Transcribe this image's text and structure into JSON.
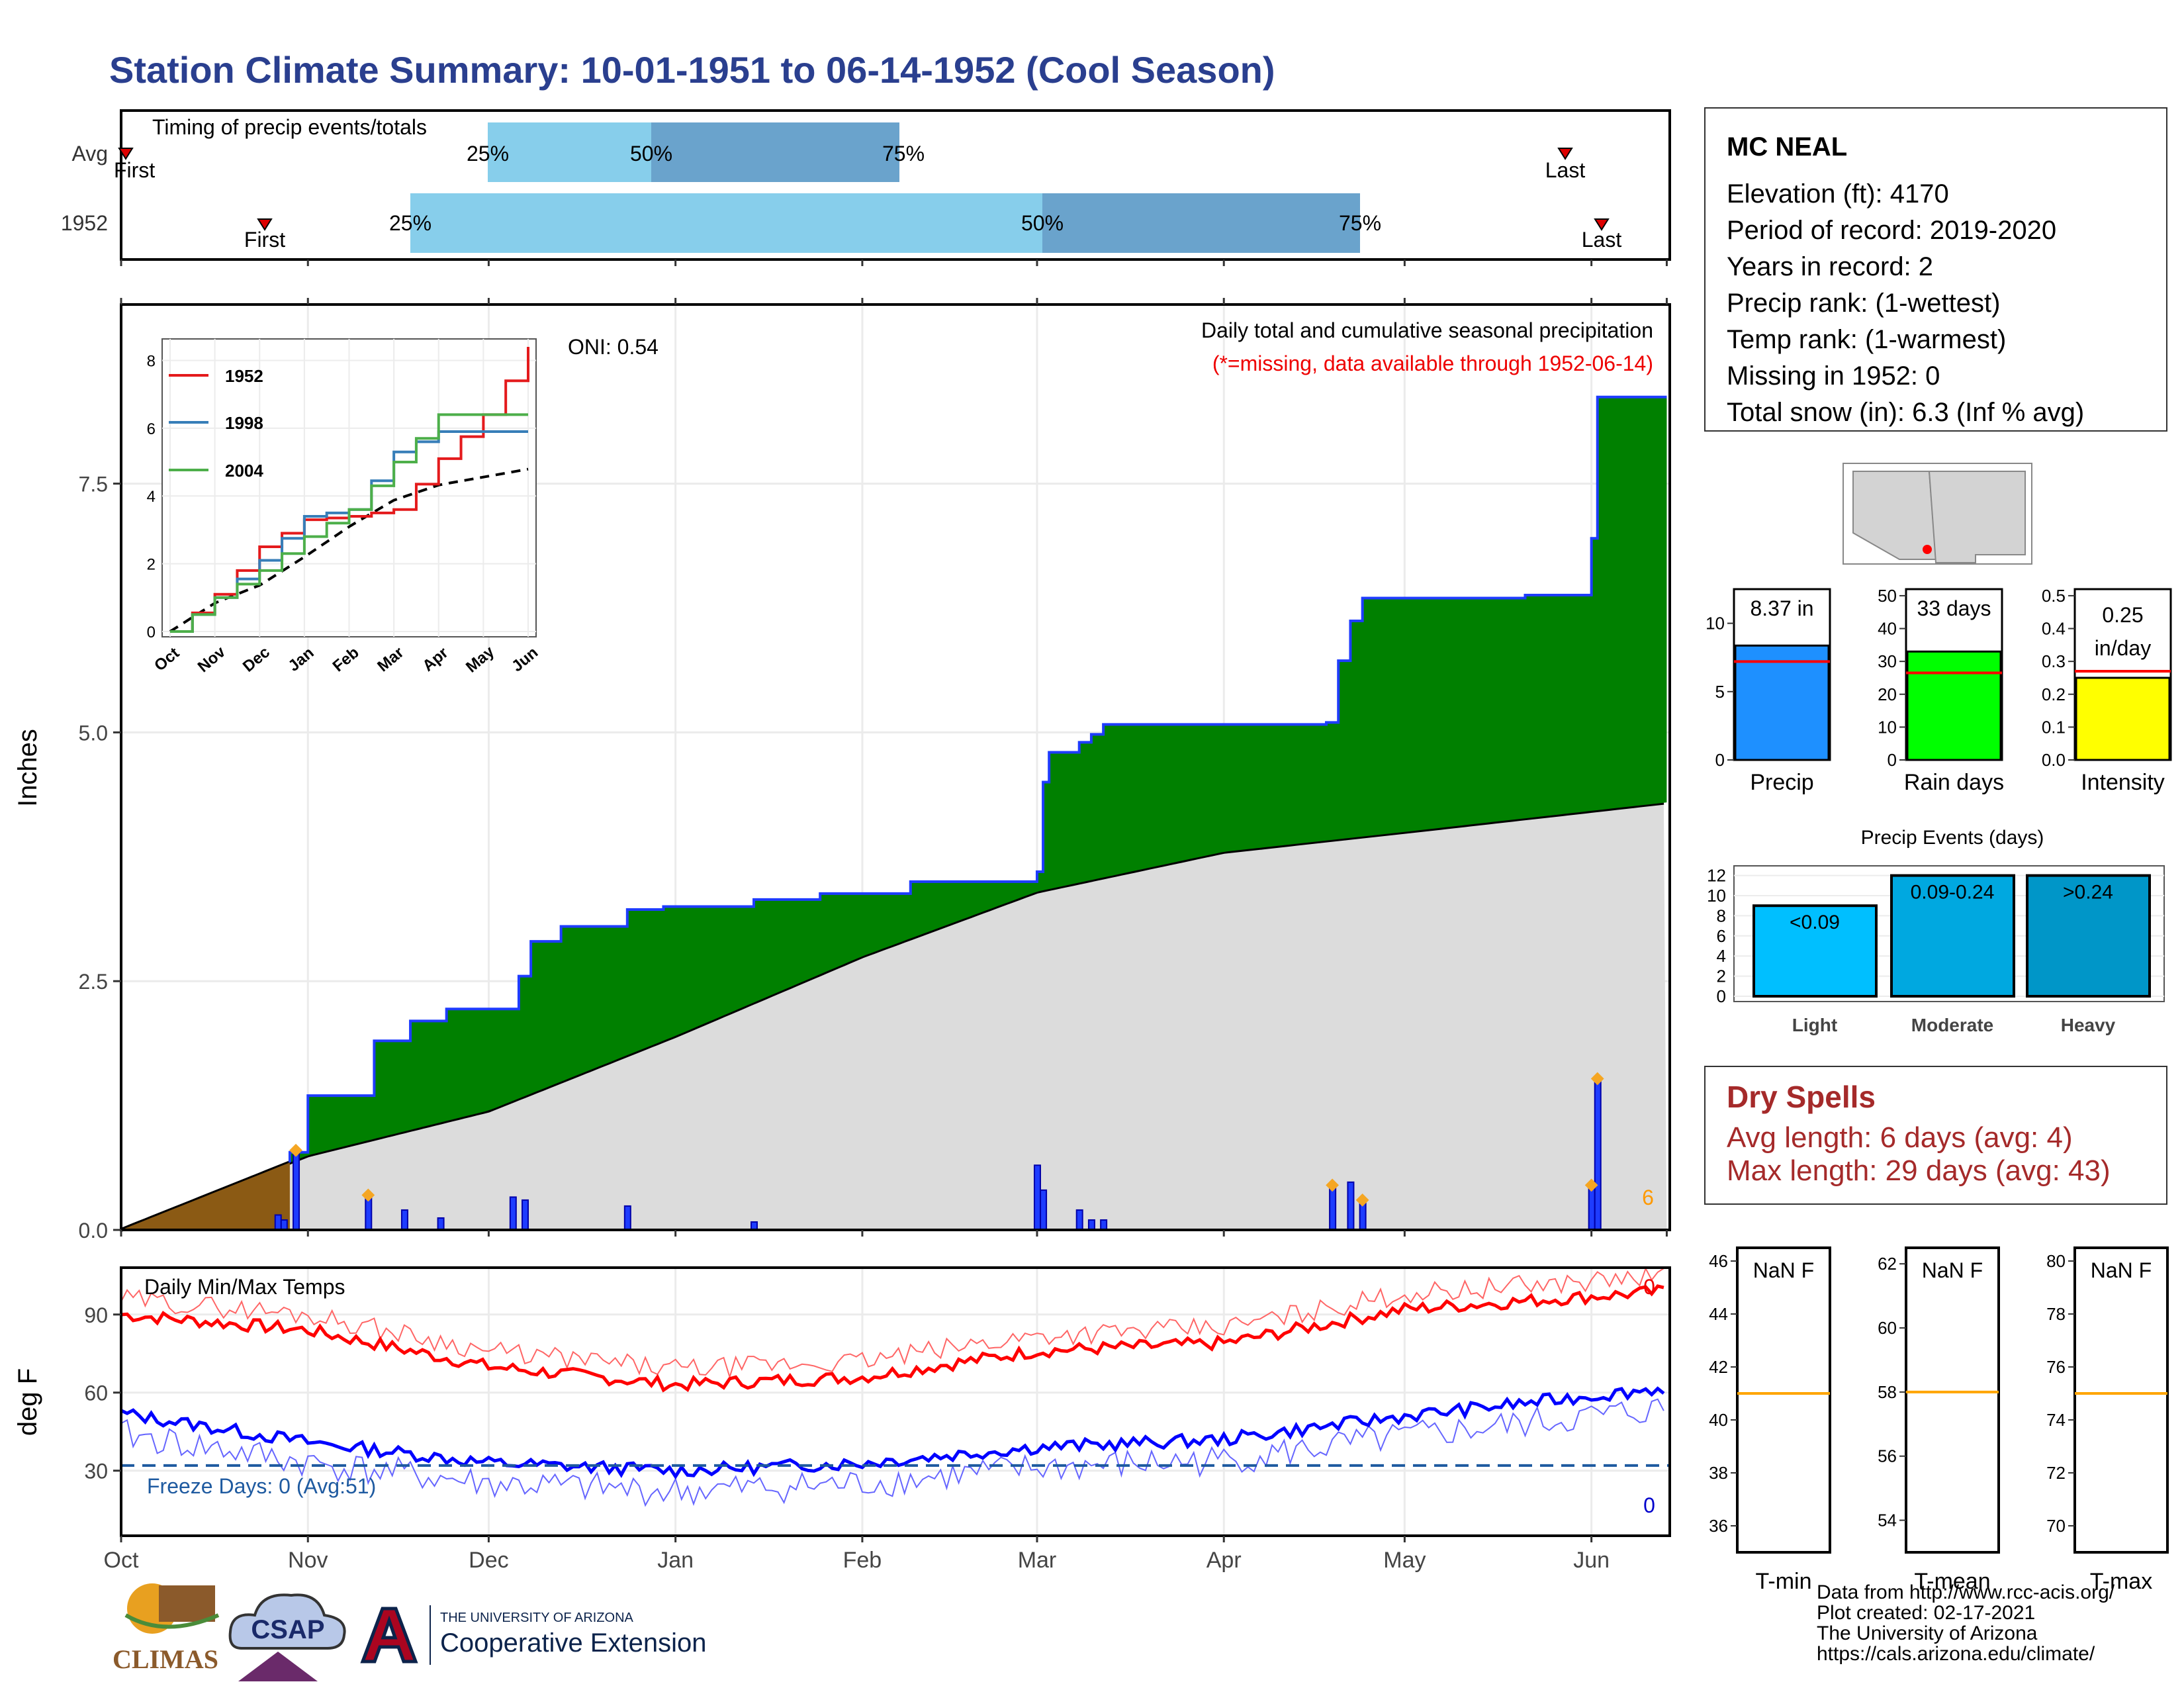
{
  "title": "Station Climate Summary: 10-01-1951 to 06-14-1952 (Cool Season)",
  "colors": {
    "title": "#2a3f8f",
    "precip_area": "#008000",
    "normal_area": "#dcdcdc",
    "pre_season": "#8b5a14",
    "bar_blue": "#1e3cff",
    "max_temp": "#ff0000",
    "min_temp": "#0000ff",
    "q_light": "#87ceeb",
    "q_dark": "#6aa3cc",
    "freeze": "#1e5aa0",
    "dry": "#a52a2a"
  },
  "timing": {
    "title": "Timing of precip events/totals",
    "rows": [
      {
        "label": "Avg",
        "first": "First",
        "last": "Last",
        "p25": "25%",
        "p50": "50%",
        "p75": "75%"
      },
      {
        "label": "1952",
        "first": "First",
        "last": "Last",
        "p25": "25%",
        "p50": "50%",
        "p75": "75%"
      }
    ]
  },
  "main_chart": {
    "oni": "ONI: 0.54",
    "subtitle": "Daily total and cumulative seasonal precipitation",
    "missing_note": "(*=missing, data available through 1952-06-14)",
    "ylabel": "Inches",
    "yticks": [
      "0.0",
      "2.5",
      "5.0",
      "7.5"
    ],
    "snow_count": "6"
  },
  "inset": {
    "yticks": [
      "0",
      "2",
      "4",
      "6",
      "8"
    ],
    "xticks": [
      "Oct",
      "Nov",
      "Dec",
      "Jan",
      "Feb",
      "Mar",
      "Apr",
      "May",
      "Jun"
    ],
    "legend": [
      "1952",
      "1998",
      "2004"
    ]
  },
  "months": [
    "Oct",
    "Nov",
    "Dec",
    "Jan",
    "Feb",
    "Mar",
    "Apr",
    "May",
    "Jun"
  ],
  "temp_chart": {
    "title": "Daily Min/Max Temps",
    "ylabel": "deg F",
    "yticks": [
      "30",
      "60",
      "90"
    ],
    "freeze_label": "Freeze Days: 0 (Avg:51)",
    "max_count": "0",
    "min_count": "0"
  },
  "station": {
    "name": "MC NEAL",
    "lines": [
      "Elevation (ft): 4170",
      "Period of record: 2019-2020",
      "Years in record: 2",
      "Precip rank:  (1-wettest)",
      "Temp rank:  (1-warmest)",
      "Missing in 1952: 0",
      "Total snow (in): 6.3 (Inf % avg)"
    ]
  },
  "mini_bars": [
    {
      "label": "Precip",
      "value_text": "8.37 in",
      "yticks": [
        "0",
        "5",
        "10"
      ],
      "color": "#1e90ff"
    },
    {
      "label": "Rain days",
      "value_text": "33 days",
      "yticks": [
        "0",
        "10",
        "20",
        "30",
        "40",
        "50"
      ],
      "color": "#00ff00"
    },
    {
      "label": "Intensity",
      "value_text": "0.25",
      "value_text2": "in/day",
      "yticks": [
        "0.0",
        "0.1",
        "0.2",
        "0.3",
        "0.4",
        "0.5"
      ],
      "color": "#ffff00"
    }
  ],
  "events": {
    "title": "Precip Events (days)",
    "yticks": [
      "0",
      "2",
      "4",
      "6",
      "8",
      "10",
      "12"
    ],
    "bars": [
      {
        "label": "Light",
        "inner": "<0.09",
        "value": 9,
        "color": "#00bfff"
      },
      {
        "label": "Moderate",
        "inner": "0.09-0.24",
        "value": 12,
        "color": "#00a8e0"
      },
      {
        "label": "Heavy",
        "inner": ">0.24",
        "value": 12,
        "color": "#0096c8"
      }
    ]
  },
  "dry_spells": {
    "title": "Dry Spells",
    "avg": "Avg length: 6 days (avg: 4)",
    "max": "Max length: 29 days (avg: 43)"
  },
  "temp_boxes": [
    {
      "label": "T-min",
      "value_text": "NaN F",
      "yticks": [
        "36",
        "38",
        "40",
        "42",
        "44",
        "46"
      ],
      "avg": 41
    },
    {
      "label": "T-mean",
      "value_text": "NaN F",
      "yticks": [
        "54",
        "56",
        "58",
        "60",
        "62"
      ],
      "avg": 58
    },
    {
      "label": "T-max",
      "value_text": "NaN F",
      "yticks": [
        "70",
        "72",
        "74",
        "76",
        "78",
        "80"
      ],
      "avg": 75
    }
  ],
  "footer": [
    "Data from http://www.rcc-acis.org/",
    "Plot created: 02-17-2021",
    "The University of Arizona",
    "https://cals.arizona.edu/climate/"
  ],
  "logos": {
    "climas": "CLIMAS",
    "csap": "CSAP",
    "ua_line1": "THE UNIVERSITY OF ARIZONA",
    "ua_line2": "Cooperative Extension"
  },
  "chart_data": {
    "type": "area",
    "title": "Daily total and cumulative seasonal precipitation",
    "ylabel": "Inches",
    "ylim": [
      0,
      9
    ],
    "x_range": [
      "1951-10-01",
      "1952-06-14"
    ],
    "series": [
      {
        "name": "1952 cumulative",
        "points": [
          [
            "1951-10-29",
            0.78
          ],
          [
            "1951-11-01",
            1.35
          ],
          [
            "1951-11-12",
            1.9
          ],
          [
            "1951-11-18",
            2.1
          ],
          [
            "1951-11-24",
            2.22
          ],
          [
            "1951-12-06",
            2.55
          ],
          [
            "1951-12-08",
            2.9
          ],
          [
            "1951-12-13",
            3.05
          ],
          [
            "1951-12-24",
            3.22
          ],
          [
            "1951-12-30",
            3.25
          ],
          [
            "1952-01-14",
            3.32
          ],
          [
            "1952-01-25",
            3.38
          ],
          [
            "1952-02-09",
            3.5
          ],
          [
            "1952-03-01",
            3.6
          ],
          [
            "1952-03-02",
            4.5
          ],
          [
            "1952-03-03",
            4.8
          ],
          [
            "1952-03-08",
            4.9
          ],
          [
            "1952-03-10",
            4.98
          ],
          [
            "1952-03-12",
            5.08
          ],
          [
            "1952-04-18",
            5.1
          ],
          [
            "1952-04-20",
            5.72
          ],
          [
            "1952-04-22",
            6.12
          ],
          [
            "1952-04-24",
            6.35
          ],
          [
            "1952-05-21",
            6.38
          ],
          [
            "1952-06-01",
            6.95
          ],
          [
            "1952-06-02",
            8.37
          ]
        ]
      },
      {
        "name": "Normal cumulative",
        "points": [
          [
            "1951-10-01",
            0.0
          ],
          [
            "1951-11-01",
            0.75
          ],
          [
            "1951-12-01",
            1.2
          ],
          [
            "1952-01-01",
            1.95
          ],
          [
            "1952-02-01",
            2.75
          ],
          [
            "1952-03-01",
            3.4
          ],
          [
            "1952-04-01",
            3.8
          ],
          [
            "1952-05-01",
            4.0
          ],
          [
            "1952-06-14",
            4.3
          ]
        ]
      },
      {
        "name": "Daily precip",
        "points": [
          [
            "1951-10-27",
            0.15
          ],
          [
            "1951-10-28",
            0.1
          ],
          [
            "1951-10-30",
            0.8
          ],
          [
            "1951-11-11",
            0.35
          ],
          [
            "1951-11-17",
            0.2
          ],
          [
            "1951-11-23",
            0.12
          ],
          [
            "1951-12-05",
            0.33
          ],
          [
            "1951-12-07",
            0.3
          ],
          [
            "1951-12-24",
            0.24
          ],
          [
            "1952-01-14",
            0.08
          ],
          [
            "1952-03-01",
            0.65
          ],
          [
            "1952-03-02",
            0.4
          ],
          [
            "1952-03-08",
            0.2
          ],
          [
            "1952-03-10",
            0.1
          ],
          [
            "1952-03-12",
            0.1
          ],
          [
            "1952-04-19",
            0.45
          ],
          [
            "1952-04-22",
            0.48
          ],
          [
            "1952-04-24",
            0.3
          ],
          [
            "1952-06-01",
            0.45
          ],
          [
            "1952-06-02",
            1.52
          ]
        ]
      }
    ],
    "inset": {
      "type": "line",
      "series": [
        {
          "name": "1952",
          "points": [
            [
              "Oct",
              0
            ],
            [
              "Nov",
              1.1
            ],
            [
              "Dec",
              2.5
            ],
            [
              "Jan",
              3.3
            ],
            [
              "Feb",
              3.4
            ],
            [
              "Mar",
              3.6
            ],
            [
              "Apr",
              5.1
            ],
            [
              "May",
              6.4
            ],
            [
              "Jun",
              8.4
            ]
          ]
        },
        {
          "name": "1998",
          "points": [
            [
              "Oct",
              0
            ],
            [
              "Nov",
              1.0
            ],
            [
              "Dec",
              2.1
            ],
            [
              "Jan",
              3.4
            ],
            [
              "Feb",
              3.6
            ],
            [
              "Mar",
              5.3
            ],
            [
              "Apr",
              5.9
            ],
            [
              "May",
              5.9
            ],
            [
              "Jun",
              5.9
            ]
          ]
        },
        {
          "name": "2004",
          "points": [
            [
              "Oct",
              0
            ],
            [
              "Nov",
              1.0
            ],
            [
              "Dec",
              1.8
            ],
            [
              "Jan",
              2.8
            ],
            [
              "Feb",
              3.6
            ],
            [
              "Mar",
              5.0
            ],
            [
              "Apr",
              6.4
            ],
            [
              "May",
              6.4
            ],
            [
              "Jun",
              6.4
            ]
          ]
        }
      ]
    },
    "temps": {
      "ylim": [
        5,
        108
      ],
      "freeze_line": 32,
      "max": [
        [
          "1951-10-01",
          90
        ],
        [
          "1951-11-01",
          84
        ],
        [
          "1951-12-01",
          70
        ],
        [
          "1952-01-01",
          63
        ],
        [
          "1952-02-01",
          66
        ],
        [
          "1952-03-01",
          76
        ],
        [
          "1952-04-01",
          79
        ],
        [
          "1952-05-01",
          92
        ],
        [
          "1952-06-14",
          99
        ]
      ],
      "min": [
        [
          "1951-10-01",
          52
        ],
        [
          "1951-11-01",
          41
        ],
        [
          "1951-12-01",
          33
        ],
        [
          "1952-01-01",
          30
        ],
        [
          "1952-02-01",
          33
        ],
        [
          "1952-03-01",
          39
        ],
        [
          "1952-04-01",
          42
        ],
        [
          "1952-05-01",
          51
        ],
        [
          "1952-06-14",
          62
        ]
      ]
    }
  }
}
